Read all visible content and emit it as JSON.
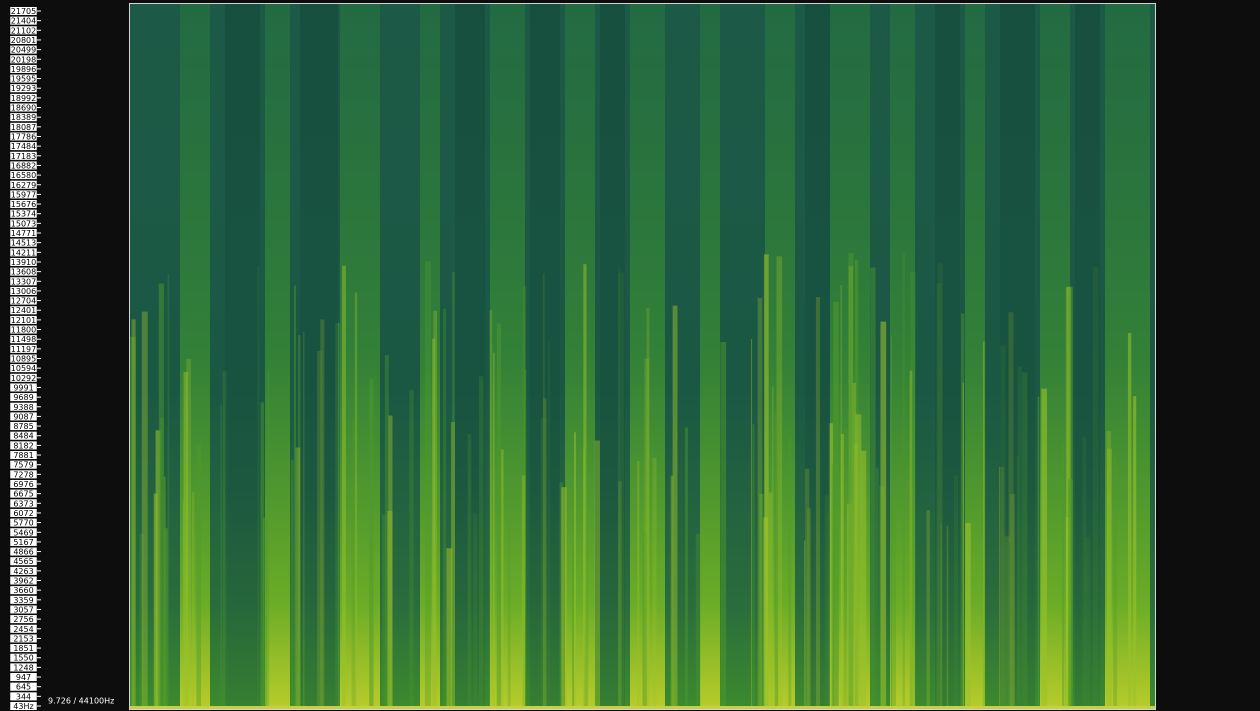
{
  "frequency_axis": {
    "labels": [
      "21705",
      "21404",
      "21102",
      "20801",
      "20499",
      "20198",
      "19896",
      "19595",
      "19293",
      "18992",
      "18690",
      "18389",
      "18087",
      "17786",
      "17484",
      "17183",
      "16882",
      "16580",
      "16279",
      "15977",
      "15676",
      "15374",
      "15073",
      "14771",
      "14513",
      "14211",
      "13910",
      "13608",
      "13307",
      "13006",
      "12704",
      "12401",
      "12101",
      "11800",
      "11498",
      "11197",
      "10895",
      "10594",
      "10292",
      "9991",
      "9689",
      "9388",
      "9087",
      "8785",
      "8484",
      "8182",
      "7881",
      "7579",
      "7278",
      "6976",
      "6675",
      "6373",
      "6072",
      "5770",
      "5469",
      "5167",
      "4866",
      "4565",
      "4263",
      "3962",
      "3660",
      "3359",
      "3057",
      "2756",
      "2454",
      "2153",
      "1851",
      "1550",
      "1248",
      "947",
      "645",
      "344",
      "43Hz"
    ]
  },
  "status": {
    "info": "9.726 / 44100Hz"
  }
}
